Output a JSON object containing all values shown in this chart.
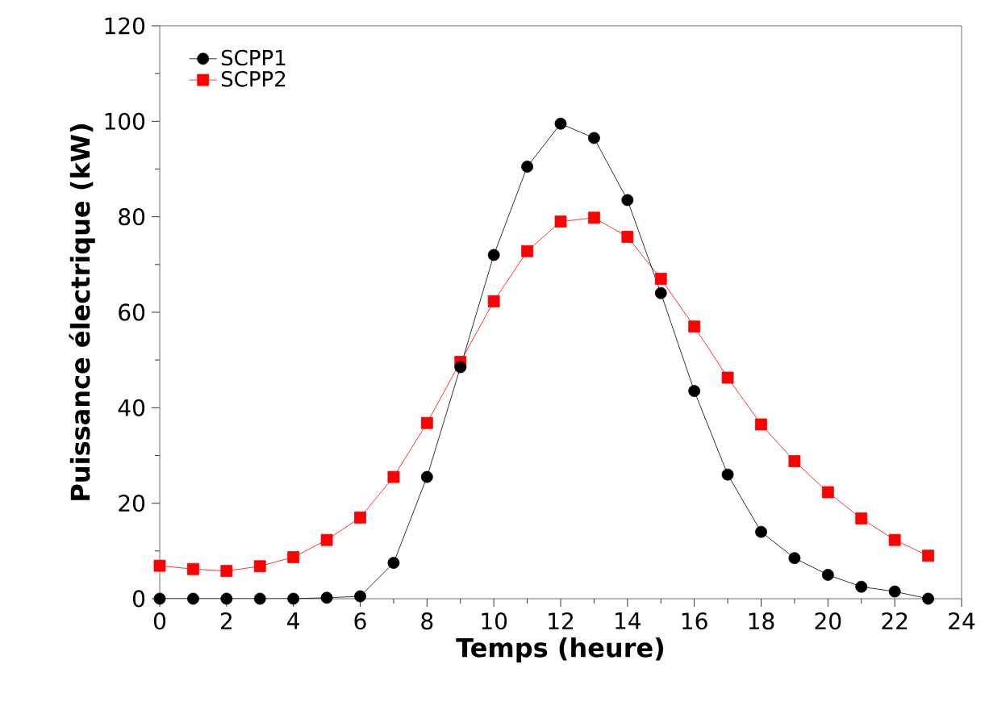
{
  "chart_data": {
    "type": "line",
    "xlabel": "Temps (heure)",
    "ylabel": "Puissance électrique (kW)",
    "x": [
      0,
      1,
      2,
      3,
      4,
      5,
      6,
      7,
      8,
      9,
      10,
      11,
      12,
      13,
      14,
      15,
      16,
      17,
      18,
      19,
      20,
      21,
      22,
      23
    ],
    "series": [
      {
        "name": "SCPP1",
        "color": "#000000",
        "marker": "circle",
        "values": [
          0,
          0,
          0,
          0,
          0,
          0.2,
          0.5,
          7.5,
          25.5,
          48.5,
          72,
          90.5,
          99.5,
          96.5,
          83.5,
          64,
          43.5,
          26,
          14,
          8.5,
          5,
          2.5,
          1.5,
          0
        ]
      },
      {
        "name": "SCPP2",
        "color": "#ff0000",
        "marker": "square",
        "values": [
          6.9,
          6.2,
          5.8,
          6.8,
          8.7,
          12.3,
          17,
          25.5,
          36.8,
          49.6,
          62.3,
          72.8,
          79,
          79.8,
          75.8,
          67,
          57,
          46.3,
          36.5,
          28.8,
          22.3,
          16.8,
          12.3,
          9
        ]
      }
    ],
    "xlim": [
      0,
      24
    ],
    "xticks": [
      0,
      2,
      4,
      6,
      8,
      10,
      12,
      14,
      16,
      18,
      20,
      22,
      24
    ],
    "ylim": [
      0,
      120
    ],
    "yticks": [
      0,
      20,
      40,
      60,
      80,
      100,
      120
    ],
    "grid": false,
    "legend": "top left",
    "line_style": "solid"
  }
}
